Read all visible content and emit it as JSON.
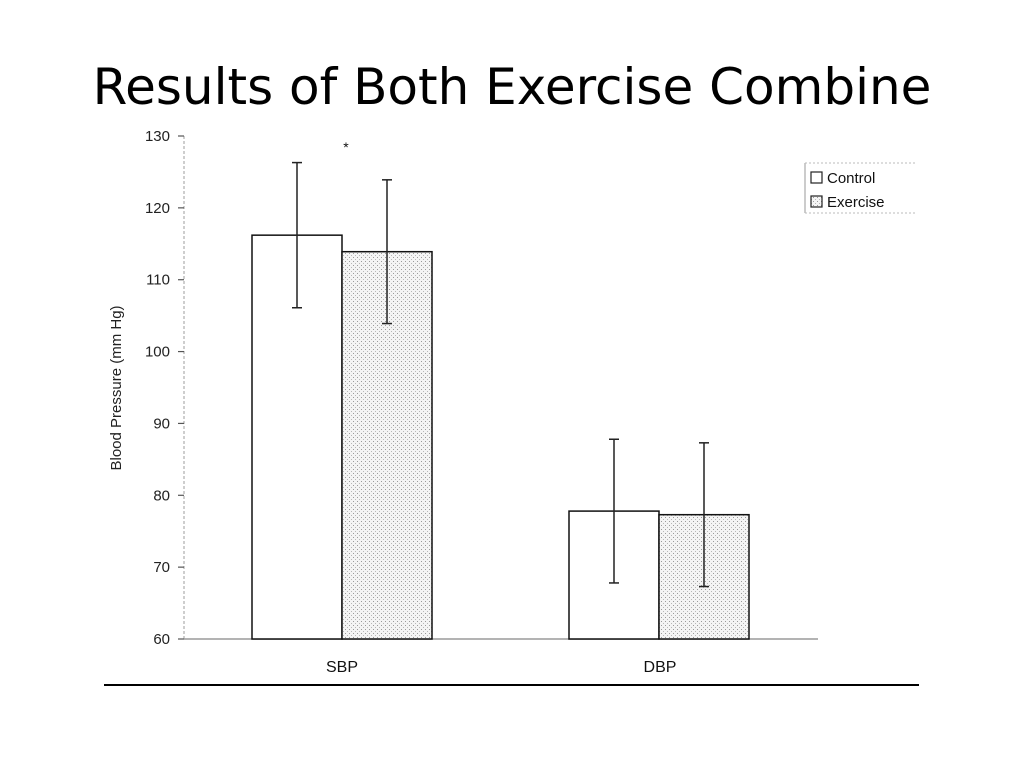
{
  "slide": {
    "title": "Results of Both Exercise Combine"
  },
  "chart_data": {
    "type": "bar",
    "title": "",
    "categories": [
      "SBP",
      "DBP"
    ],
    "series": [
      {
        "name": "Control",
        "values": [
          116.2,
          77.8
        ],
        "error": [
          10.1,
          10.0
        ],
        "fill": "#ffffff",
        "pattern": "none"
      },
      {
        "name": "Exercise",
        "values": [
          113.9,
          77.3
        ],
        "error": [
          10.0,
          10.0
        ],
        "fill": "#f3f3f3",
        "pattern": "dotted"
      }
    ],
    "xlabel": "",
    "ylabel": "Blood Pressure (mm Hg)",
    "ylim": [
      60,
      130
    ],
    "yticks": [
      60,
      70,
      80,
      90,
      100,
      110,
      120,
      130
    ],
    "significance_markers": [
      "*"
    ],
    "legend_position": "top-right",
    "grid": false
  }
}
